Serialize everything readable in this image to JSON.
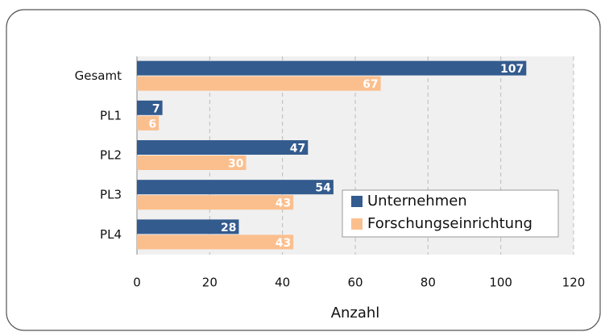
{
  "chart_data": {
    "type": "hbar",
    "categories": [
      "Gesamt",
      "PL1",
      "PL2",
      "PL3",
      "PL4"
    ],
    "series": [
      {
        "name": "Unternehmen",
        "color": "#335b8e",
        "values": [
          107,
          7,
          47,
          54,
          28
        ]
      },
      {
        "name": "Forschungseinrichtung",
        "color": "#fbbf8e",
        "values": [
          67,
          6,
          30,
          43,
          43
        ]
      }
    ],
    "xlabel": "Anzahl",
    "xlim": [
      0,
      120
    ],
    "xticks": [
      0,
      20,
      40,
      60,
      80,
      100,
      120
    ],
    "grid": true,
    "legend": "lower right"
  }
}
